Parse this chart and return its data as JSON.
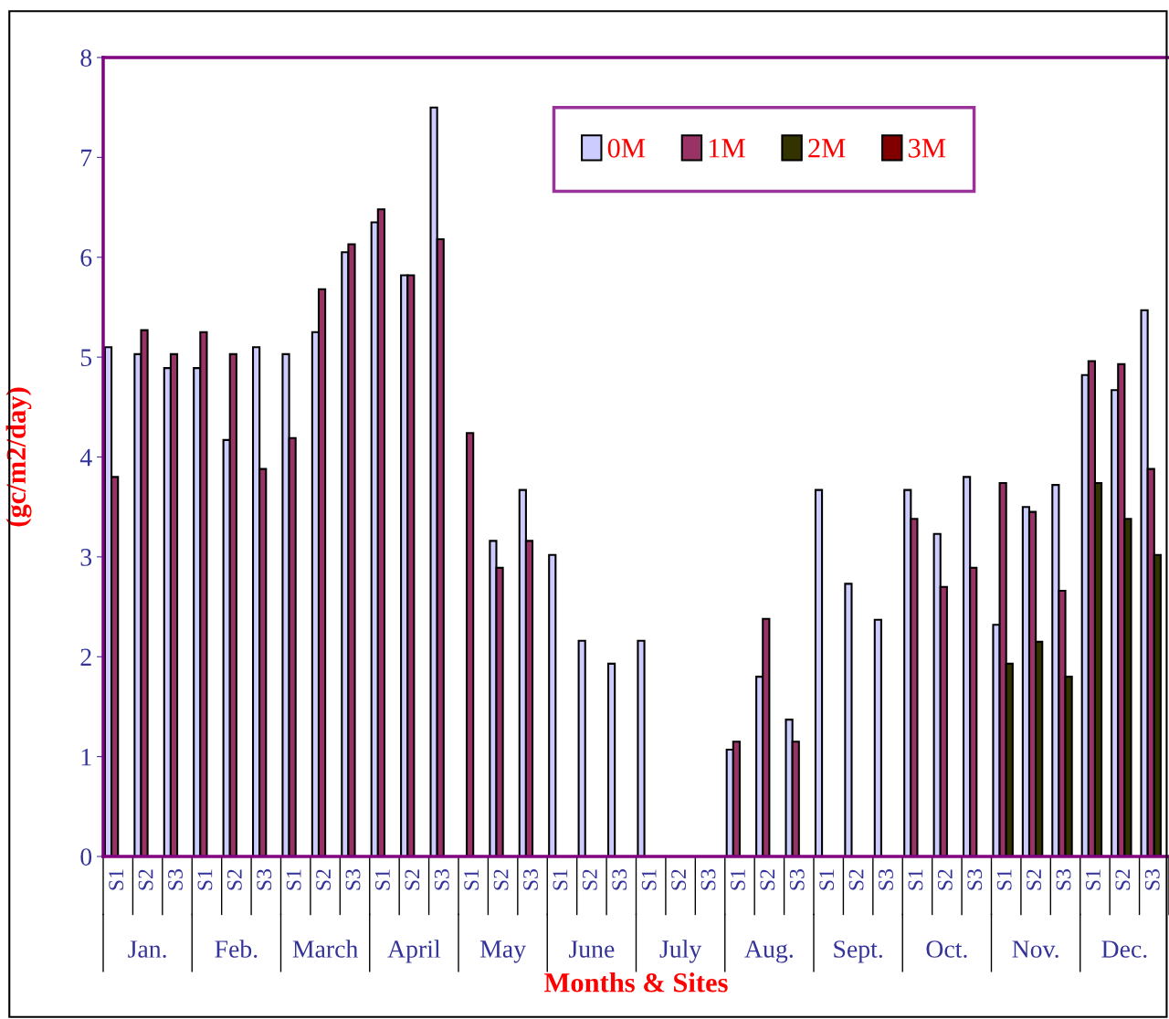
{
  "chart_data": {
    "type": "bar",
    "xlabel": "Months & Sites",
    "ylabel": "(gc/m2/day)",
    "categories": [
      "S1",
      "S2",
      "S3",
      "S1",
      "S2",
      "S3",
      "S1",
      "S2",
      "S3",
      "S1",
      "S2",
      "S3",
      "S1",
      "S2",
      "S3",
      "S1",
      "S2",
      "S3",
      "S1",
      "S2",
      "S3",
      "S1",
      "S2",
      "S3",
      "S1",
      "S2",
      "S3",
      "S1",
      "S2",
      "S3",
      "S1",
      "S2",
      "S3",
      "S1",
      "S2",
      "S3"
    ],
    "annotations": [
      "Jan.",
      "Feb.",
      "March",
      "April",
      "May",
      "June",
      "July",
      "Aug.",
      "Sept.",
      "Oct.",
      "Nov.",
      "Dec."
    ],
    "series": [
      {
        "name": "0M",
        "color": "#ccccff",
        "values": [
          5.1,
          5.03,
          4.89,
          4.89,
          4.17,
          5.1,
          5.03,
          5.25,
          6.05,
          6.35,
          5.82,
          7.5,
          null,
          3.16,
          3.67,
          3.02,
          2.16,
          1.93,
          2.16,
          null,
          null,
          1.07,
          1.8,
          1.37,
          3.67,
          2.73,
          2.37,
          3.67,
          3.23,
          3.8,
          2.32,
          3.5,
          3.72,
          4.82,
          4.67,
          5.47
        ]
      },
      {
        "name": "1M",
        "color": "#993366",
        "values": [
          3.8,
          5.27,
          5.03,
          5.25,
          5.03,
          3.88,
          4.19,
          5.68,
          6.13,
          6.48,
          5.82,
          6.18,
          4.24,
          2.89,
          3.16,
          null,
          null,
          null,
          null,
          null,
          null,
          1.15,
          2.38,
          1.15,
          null,
          null,
          null,
          3.38,
          2.7,
          2.89,
          3.74,
          3.45,
          2.66,
          4.96,
          4.93,
          3.88
        ]
      },
      {
        "name": "2M",
        "color": "#333300",
        "values": [
          null,
          null,
          null,
          null,
          null,
          null,
          null,
          null,
          null,
          null,
          null,
          null,
          null,
          null,
          null,
          null,
          null,
          null,
          null,
          null,
          null,
          null,
          null,
          null,
          null,
          null,
          null,
          null,
          null,
          null,
          1.93,
          2.15,
          1.8,
          3.74,
          3.38,
          3.02
        ]
      },
      {
        "name": "3M",
        "color": "#800000",
        "values": [
          null,
          null,
          null,
          null,
          null,
          null,
          null,
          null,
          null,
          null,
          null,
          null,
          null,
          null,
          null,
          null,
          null,
          null,
          null,
          null,
          null,
          null,
          null,
          null,
          null,
          null,
          null,
          null,
          null,
          null,
          null,
          null,
          null,
          null,
          null,
          null
        ]
      }
    ],
    "ylim": [
      0,
      8
    ],
    "yticks": [
      0,
      1,
      2,
      3,
      4,
      5,
      6,
      7,
      8
    ],
    "grid": false,
    "legend": "top"
  }
}
